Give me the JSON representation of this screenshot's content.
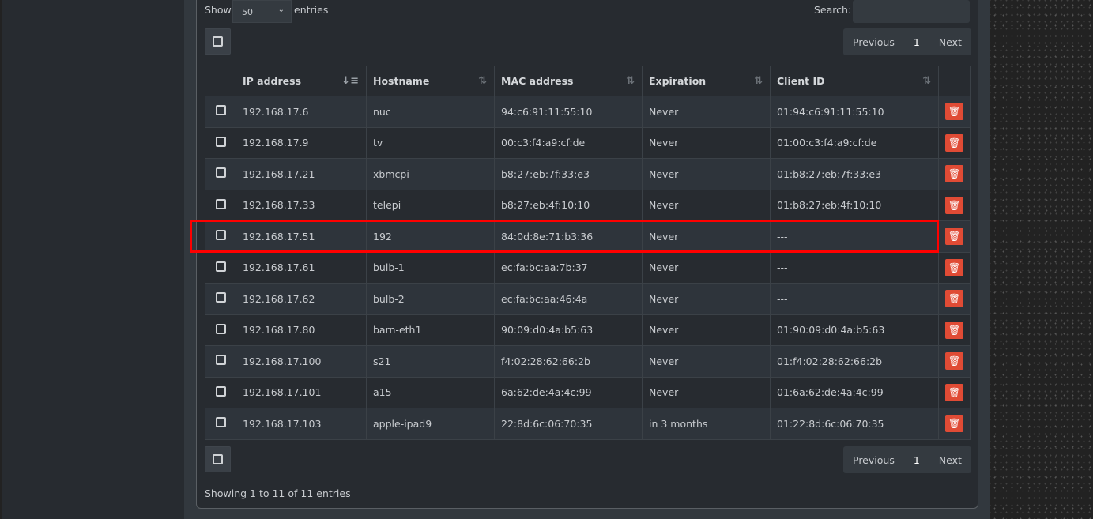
{
  "length": {
    "show_label": "Show",
    "value": "50",
    "entries_label": "entries"
  },
  "search": {
    "label": "Search:",
    "value": ""
  },
  "pagination": {
    "previous": "Previous",
    "page": "1",
    "next": "Next"
  },
  "columns": [
    "IP address",
    "Hostname",
    "MAC address",
    "Expiration",
    "Client ID"
  ],
  "sorted_column": "IP address",
  "rows": [
    {
      "ip": "192.168.17.6",
      "host": "nuc",
      "mac": "94:c6:91:11:55:10",
      "exp": "Never",
      "cid": "01:94:c6:91:11:55:10"
    },
    {
      "ip": "192.168.17.9",
      "host": "tv",
      "mac": "00:c3:f4:a9:cf:de",
      "exp": "Never",
      "cid": "01:00:c3:f4:a9:cf:de"
    },
    {
      "ip": "192.168.17.21",
      "host": "xbmcpi",
      "mac": "b8:27:eb:7f:33:e3",
      "exp": "Never",
      "cid": "01:b8:27:eb:7f:33:e3"
    },
    {
      "ip": "192.168.17.33",
      "host": "telepi",
      "mac": "b8:27:eb:4f:10:10",
      "exp": "Never",
      "cid": "01:b8:27:eb:4f:10:10"
    },
    {
      "ip": "192.168.17.51",
      "host": "192",
      "mac": "84:0d:8e:71:b3:36",
      "exp": "Never",
      "cid": "---"
    },
    {
      "ip": "192.168.17.61",
      "host": "bulb-1",
      "mac": "ec:fa:bc:aa:7b:37",
      "exp": "Never",
      "cid": "---"
    },
    {
      "ip": "192.168.17.62",
      "host": "bulb-2",
      "mac": "ec:fa:bc:aa:46:4a",
      "exp": "Never",
      "cid": "---"
    },
    {
      "ip": "192.168.17.80",
      "host": "barn-eth1",
      "mac": "90:09:d0:4a:b5:63",
      "exp": "Never",
      "cid": "01:90:09:d0:4a:b5:63"
    },
    {
      "ip": "192.168.17.100",
      "host": "s21",
      "mac": "f4:02:28:62:66:2b",
      "exp": "Never",
      "cid": "01:f4:02:28:62:66:2b"
    },
    {
      "ip": "192.168.17.101",
      "host": "a15",
      "mac": "6a:62:de:4a:4c:99",
      "exp": "Never",
      "cid": "01:6a:62:de:4a:4c:99"
    },
    {
      "ip": "192.168.17.103",
      "host": "apple-ipad9",
      "mac": "22:8d:6c:06:70:35",
      "exp": "in 3 months",
      "cid": "01:22:8d:6c:06:70:35"
    }
  ],
  "highlighted_row": "192.168.17.51",
  "info": "Showing 1 to 11 of 11 entries",
  "colors": {
    "delete": "#e04b35",
    "highlight": "#ff0000"
  }
}
